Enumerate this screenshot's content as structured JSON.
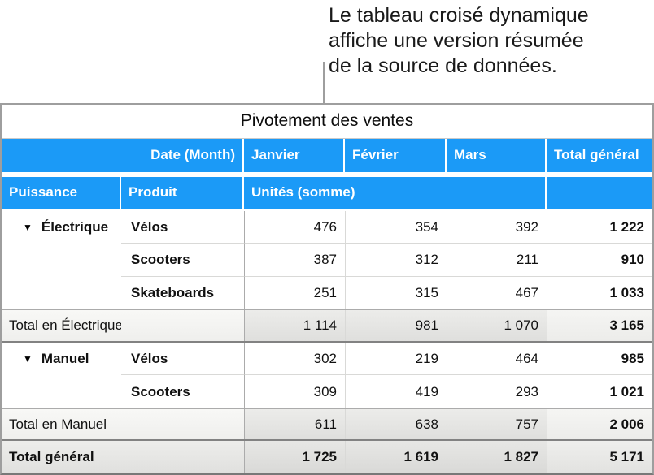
{
  "annotation": {
    "lines": [
      "Le tableau croisé dynamique",
      "affiche une version résumée",
      "de la source de données."
    ]
  },
  "icons": {
    "disclosure": "▼"
  },
  "colors": {
    "header_blue": "#1b9af7",
    "header_text": "#ffffff",
    "total_row_gray": "#e5e5e3",
    "grid_line_light": "#d9d9d7",
    "grid_line_strong": "#ababab",
    "callout_line": "#9e9e9e"
  },
  "table": {
    "title": "Pivotement des ventes",
    "colHeader": {
      "dateLabel": "Date (Month)",
      "months": [
        "Janvier",
        "Février",
        "Mars"
      ],
      "totalLabel": "Total général"
    },
    "subHeader": {
      "rowField1": "Puissance",
      "rowField2": "Produit",
      "valueLabel": "Unités (somme)"
    },
    "groups": [
      {
        "name": "Électrique",
        "rows": [
          {
            "product": "Vélos",
            "values": [
              "476",
              "354",
              "392"
            ],
            "total": "1 222"
          },
          {
            "product": "Scooters",
            "values": [
              "387",
              "312",
              "211"
            ],
            "total": "910"
          },
          {
            "product": "Skateboards",
            "values": [
              "251",
              "315",
              "467"
            ],
            "total": "1 033"
          }
        ],
        "totalRow": {
          "label": "Total en Électrique",
          "values": [
            "1 114",
            "981",
            "1 070"
          ],
          "total": "3 165"
        }
      },
      {
        "name": "Manuel",
        "rows": [
          {
            "product": "Vélos",
            "values": [
              "302",
              "219",
              "464"
            ],
            "total": "985"
          },
          {
            "product": "Scooters",
            "values": [
              "309",
              "419",
              "293"
            ],
            "total": "1 021"
          }
        ],
        "totalRow": {
          "label": "Total en Manuel",
          "values": [
            "611",
            "638",
            "757"
          ],
          "total": "2 006"
        }
      }
    ],
    "grandTotal": {
      "label": "Total général",
      "values": [
        "1 725",
        "1 619",
        "1 827"
      ],
      "total": "5 171"
    }
  }
}
